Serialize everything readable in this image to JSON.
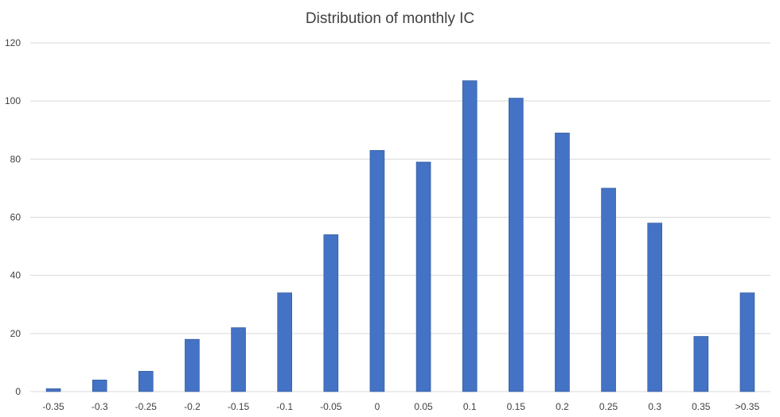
{
  "chart_data": {
    "type": "bar",
    "title": "Distribution of monthly IC",
    "xlabel": "",
    "ylabel": "",
    "categories": [
      "-0.35",
      "-0.3",
      "-0.25",
      "-0.2",
      "-0.15",
      "-0.1",
      "-0.05",
      "0",
      "0.05",
      "0.1",
      "0.15",
      "0.2",
      "0.25",
      "0.3",
      "0.35",
      ">0.35"
    ],
    "values": [
      1,
      4,
      7,
      18,
      22,
      34,
      54,
      83,
      79,
      107,
      101,
      89,
      70,
      58,
      19,
      34
    ],
    "ylim": [
      0,
      120
    ],
    "yticks": [
      "0",
      "20",
      "40",
      "60",
      "80",
      "100",
      "120"
    ],
    "grid": true,
    "legend": "none",
    "bar_color": "#4472c4",
    "bar_border_color": "#2f5597"
  }
}
